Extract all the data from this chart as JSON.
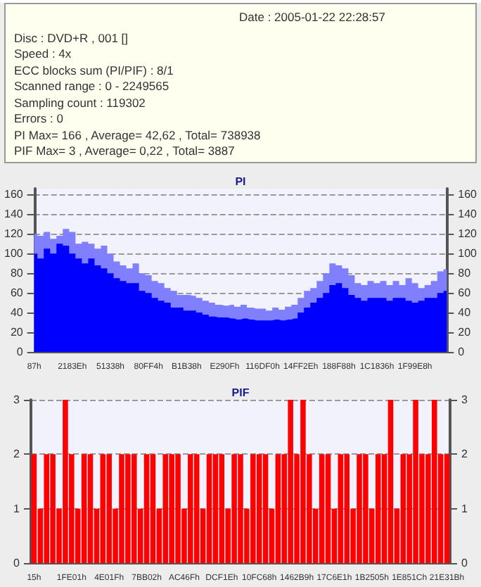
{
  "chart_data": [
    {
      "type": "other",
      "annotations": [
        "Date : 2005-01-22 22:28:57",
        "Disc : DVD+R , 001 []",
        "Speed : 4x",
        "ECC blocks sum (PI/PIF) : 8/1",
        "Scanned range : 0 - 2249565",
        "Sampling count : 119302",
        "Errors : 0",
        "PI Max= 166 , Average= 42,62 , Total= 738938",
        "PIF Max= 3 , Average= 0,22 , Total= 3887"
      ]
    },
    {
      "type": "area",
      "title": "PI",
      "grid": "y",
      "categories": [
        "87h",
        null,
        null,
        null,
        null,
        null,
        "2183Eh",
        null,
        null,
        null,
        null,
        null,
        "51338h",
        null,
        null,
        null,
        null,
        null,
        "80FF4h",
        null,
        null,
        null,
        null,
        null,
        "B1B38h",
        null,
        null,
        null,
        null,
        null,
        "E290Fh",
        null,
        null,
        null,
        null,
        null,
        "116DF0h",
        null,
        null,
        null,
        null,
        null,
        "14FF2Eh",
        null,
        null,
        null,
        null,
        null,
        "188F88h",
        null,
        null,
        null,
        null,
        null,
        "1C1836h",
        null,
        null,
        null,
        null,
        null,
        "1F99E8h",
        null,
        null,
        null,
        null,
        null
      ],
      "ylim": [
        0,
        166
      ],
      "yticks": [
        0,
        20,
        40,
        60,
        80,
        100,
        120,
        140,
        160
      ],
      "y2lim": [
        0,
        166
      ],
      "y2ticks": [
        0,
        20,
        40,
        60,
        80,
        100,
        120,
        140,
        160
      ],
      "series": [
        {
          "color": "#8080ff",
          "values": [
            120,
            118,
            122,
            115,
            118,
            125,
            122,
            110,
            112,
            110,
            105,
            108,
            100,
            92,
            88,
            85,
            90,
            80,
            78,
            72,
            70,
            65,
            62,
            58,
            58,
            57,
            55,
            52,
            50,
            48,
            47,
            48,
            46,
            48,
            45,
            44,
            44,
            42,
            45,
            43,
            46,
            48,
            55,
            62,
            65,
            72,
            80,
            90,
            88,
            85,
            78,
            70,
            68,
            72,
            70,
            72,
            68,
            72,
            68,
            75,
            70,
            65,
            68,
            72,
            82,
            84
          ]
        },
        {
          "color": "#0000ff",
          "values": [
            100,
            95,
            105,
            100,
            110,
            108,
            100,
            95,
            90,
            95,
            88,
            85,
            80,
            75,
            72,
            70,
            70,
            62,
            60,
            55,
            52,
            50,
            45,
            45,
            42,
            42,
            40,
            38,
            36,
            35,
            35,
            34,
            33,
            34,
            33,
            32,
            32,
            32,
            33,
            32,
            33,
            34,
            40,
            45,
            50,
            55,
            60,
            68,
            70,
            65,
            58,
            55,
            52,
            55,
            55,
            55,
            52,
            55,
            55,
            52,
            50,
            52,
            55,
            55,
            60,
            62
          ]
        }
      ]
    },
    {
      "type": "bar",
      "title": "PIF",
      "grid": "y",
      "categories": [
        "15h",
        null,
        null,
        null,
        null,
        null,
        "1FE01h",
        null,
        null,
        null,
        null,
        null,
        "4E01Fh",
        null,
        null,
        null,
        null,
        null,
        "7BB02h",
        null,
        null,
        null,
        null,
        null,
        "AC46Fh",
        null,
        null,
        null,
        null,
        null,
        "DCF1Eh",
        null,
        null,
        null,
        null,
        null,
        "10FC68h",
        null,
        null,
        null,
        null,
        null,
        "1462B9h",
        null,
        null,
        null,
        null,
        null,
        "17C6E1h",
        null,
        null,
        null,
        null,
        null,
        "1B2505h",
        null,
        null,
        null,
        null,
        null,
        "1E851Ch",
        null,
        null,
        null,
        null,
        null,
        "21E31Bh"
      ],
      "ylim": [
        0,
        3
      ],
      "yticks": [
        0,
        1,
        2,
        3
      ],
      "y2lim": [
        0,
        3
      ],
      "y2ticks": [
        0,
        1,
        2,
        3
      ],
      "series": [
        {
          "color": "#ff0000",
          "values": [
            2,
            1,
            2,
            2,
            1,
            3,
            2,
            1,
            2,
            2,
            1,
            2,
            2,
            1,
            2,
            2,
            2,
            1,
            2,
            2,
            1,
            2,
            2,
            2,
            1,
            2,
            2,
            1,
            2,
            2,
            2,
            1,
            2,
            2,
            1,
            2,
            2,
            2,
            1,
            2,
            2,
            3,
            2,
            3,
            2,
            1,
            2,
            2,
            1,
            2,
            2,
            1,
            2,
            2,
            1,
            2,
            2,
            3,
            1,
            2,
            2,
            3,
            2,
            2,
            3,
            2,
            2
          ]
        }
      ]
    }
  ]
}
